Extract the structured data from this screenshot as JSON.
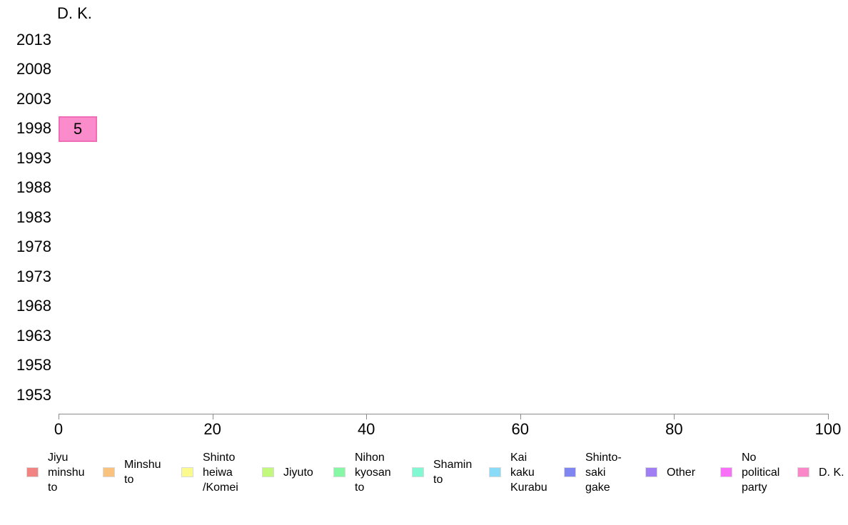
{
  "chart_data": {
    "type": "bar",
    "orientation": "horizontal",
    "title": "D. K.",
    "xlabel": "",
    "ylabel": "",
    "categories": [
      "2013",
      "2008",
      "2003",
      "1998",
      "1993",
      "1988",
      "1983",
      "1978",
      "1973",
      "1968",
      "1963",
      "1958",
      "1953"
    ],
    "values": [
      0,
      0,
      0,
      5,
      0,
      0,
      0,
      0,
      0,
      0,
      0,
      0,
      0
    ],
    "bar_label": "5",
    "bar_color": "#fb8ccb",
    "bar_border_color": "#f06eb8",
    "xlim": [
      0,
      100
    ],
    "x_ticks": [
      "0",
      "20",
      "40",
      "60",
      "80",
      "100"
    ],
    "grid": "off",
    "legend_position": "bottom",
    "legend": [
      {
        "label": "Jiyu minshu to",
        "color": "#f28383"
      },
      {
        "label": "Minshu to",
        "color": "#f9c27e"
      },
      {
        "label": "Shinto heiwa /Komei",
        "color": "#fafa8f"
      },
      {
        "label": "Jiyuto",
        "color": "#c2f87b"
      },
      {
        "label": "Nihon kyosan to",
        "color": "#86f8a5"
      },
      {
        "label": "Shamin to",
        "color": "#82f8d2"
      },
      {
        "label": "Kai kaku Kurabu",
        "color": "#8adbf8"
      },
      {
        "label": "Shinto-saki gake",
        "color": "#7f86f2"
      },
      {
        "label": "Other",
        "color": "#a07ff5"
      },
      {
        "label": "No political party",
        "color": "#f870f8"
      },
      {
        "label": "D. K.",
        "color": "#fa87c7"
      }
    ]
  }
}
